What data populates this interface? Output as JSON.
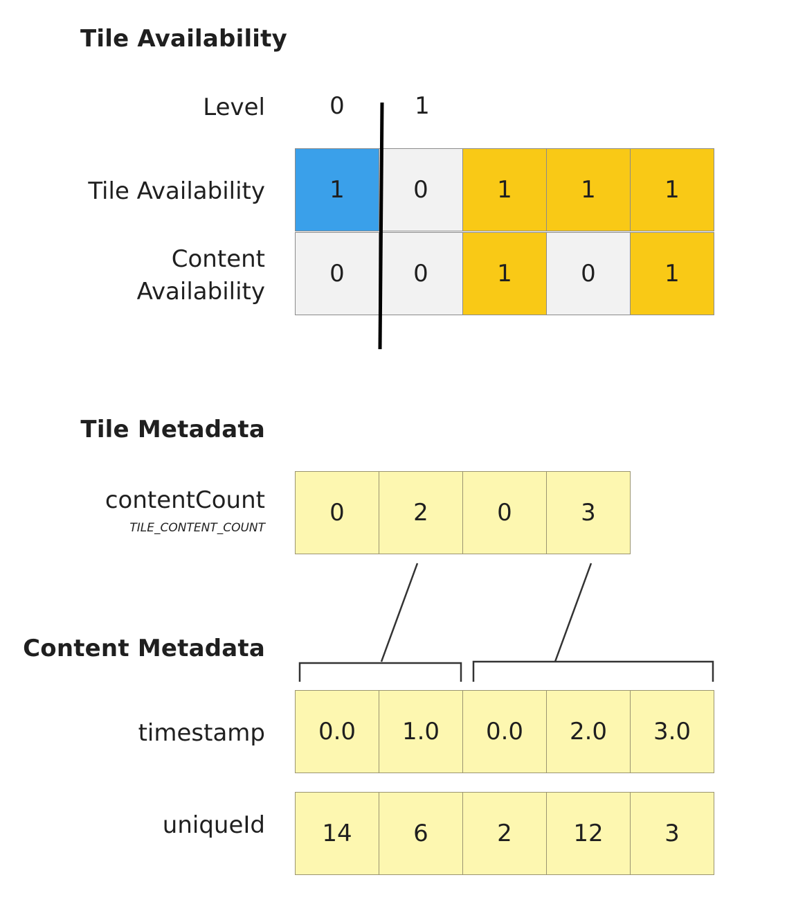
{
  "headings": {
    "tile_availability": "Tile Availability",
    "tile_metadata": "Tile Metadata",
    "content_metadata": "Content Metadata"
  },
  "labels": {
    "level": "Level",
    "tile_availability": "Tile Availability",
    "content_availability_line1": "Content",
    "content_availability_line2": "Availability",
    "content_count": "contentCount",
    "content_count_semantic": "TILE_CONTENT_COUNT",
    "timestamp": "timestamp",
    "unique_id": "uniqueId"
  },
  "levels": [
    "0",
    "1"
  ],
  "tile_availability": [
    "1",
    "0",
    "1",
    "1",
    "1"
  ],
  "content_availability": [
    "0",
    "0",
    "1",
    "0",
    "1"
  ],
  "content_count": [
    "0",
    "2",
    "0",
    "3"
  ],
  "timestamp": [
    "0.0",
    "1.0",
    "0.0",
    "2.0",
    "3.0"
  ],
  "unique_id": [
    "14",
    "6",
    "2",
    "12",
    "3"
  ],
  "colors": {
    "level0_available": "#3aa0ea",
    "unavailable": "#f2f2f2",
    "available": "#f9c916",
    "metadata": "#fdf7b0"
  }
}
